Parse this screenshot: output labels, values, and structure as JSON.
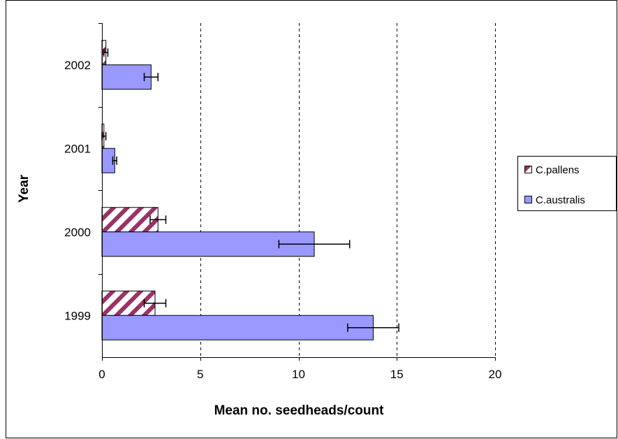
{
  "chart_data": {
    "type": "bar",
    "orientation": "horizontal",
    "categories": [
      "1999",
      "2000",
      "2001",
      "2002"
    ],
    "series": [
      {
        "name": "C.pallens",
        "values": [
          2.7,
          2.85,
          0.1,
          0.2
        ],
        "errors": [
          0.55,
          0.4,
          0.1,
          0.1
        ],
        "color": "#993366",
        "pattern": "diagonal-stripes"
      },
      {
        "name": "C.australis",
        "values": [
          13.8,
          10.8,
          0.65,
          2.5
        ],
        "errors": [
          1.3,
          1.8,
          0.1,
          0.35
        ],
        "color": "#9999ff",
        "pattern": "solid"
      }
    ],
    "xlabel": "Mean no. seedheads/count",
    "ylabel": "Year",
    "xlim": [
      0,
      20
    ],
    "xticks": [
      "0",
      "5",
      "10",
      "15",
      "20"
    ],
    "grid": "vertical-dashed",
    "legend_position": "right"
  }
}
